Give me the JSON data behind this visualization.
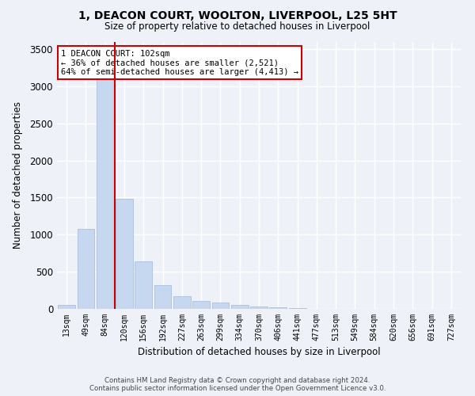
{
  "title_line1": "1, DEACON COURT, WOOLTON, LIVERPOOL, L25 5HT",
  "title_line2": "Size of property relative to detached houses in Liverpool",
  "xlabel": "Distribution of detached houses by size in Liverpool",
  "ylabel": "Number of detached properties",
  "categories": [
    "13sqm",
    "49sqm",
    "84sqm",
    "120sqm",
    "156sqm",
    "192sqm",
    "227sqm",
    "263sqm",
    "299sqm",
    "334sqm",
    "370sqm",
    "406sqm",
    "441sqm",
    "477sqm",
    "513sqm",
    "549sqm",
    "584sqm",
    "620sqm",
    "656sqm",
    "691sqm",
    "727sqm"
  ],
  "values": [
    55,
    1080,
    3300,
    1480,
    640,
    320,
    175,
    110,
    85,
    50,
    28,
    20,
    12,
    5,
    2,
    1,
    0,
    0,
    0,
    0,
    0
  ],
  "bar_color": "#c5d8f0",
  "bar_edgecolor": "#a0b8d8",
  "vline_color": "#cc0000",
  "annotation_text": "1 DEACON COURT: 102sqm\n← 36% of detached houses are smaller (2,521)\n64% of semi-detached houses are larger (4,413) →",
  "annotation_box_color": "#ffffff",
  "annotation_box_edgecolor": "#cc0000",
  "ylim": [
    0,
    3600
  ],
  "yticks": [
    0,
    500,
    1000,
    1500,
    2000,
    2500,
    3000,
    3500
  ],
  "background_color": "#eef2f8",
  "grid_color": "#ffffff",
  "footer_line1": "Contains HM Land Registry data © Crown copyright and database right 2024.",
  "footer_line2": "Contains public sector information licensed under the Open Government Licence v3.0."
}
